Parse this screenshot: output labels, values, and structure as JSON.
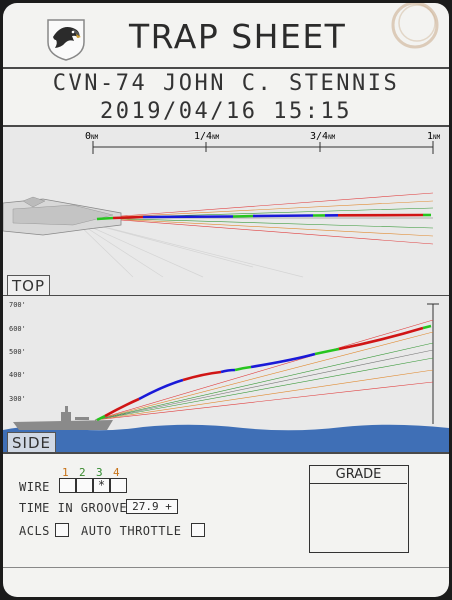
{
  "header": {
    "title": "TRAP SHEET",
    "ship": "CVN-74 JOHN C. STENNIS",
    "datetime": "2019/04/16 15:15"
  },
  "top_view": {
    "label": "TOP",
    "scale_ticks": [
      {
        "main": "0",
        "unit": "NM"
      },
      {
        "main": "1/4",
        "unit": "NM"
      },
      {
        "main": "3/4",
        "unit": "NM"
      },
      {
        "main": "1",
        "unit": "NM"
      }
    ]
  },
  "side_view": {
    "label": "SIDE",
    "altitude_ticks": [
      "700'",
      "600'",
      "500'",
      "400'",
      "300'"
    ]
  },
  "footer": {
    "wire_label": "WIRE :",
    "wire_numbers": [
      "1",
      "2",
      "3",
      "4"
    ],
    "wire_caught": "*",
    "time_in_groove_label": "TIME IN GROOVE:",
    "time_in_groove_value": "27.9 +",
    "acls_label": "ACLS",
    "auto_throttle_label": "AUTO  THROTTLE",
    "grade_label": "GRADE"
  },
  "colors": {
    "wire_1": "#c8741a",
    "wire_2": "#3b8a2e",
    "wire_3": "#2f8a2e",
    "wire_4": "#c8741a",
    "track_red": "#d01515",
    "track_blue": "#1a1ad8",
    "track_green": "#27c51f",
    "water": "#3f6fb6"
  }
}
